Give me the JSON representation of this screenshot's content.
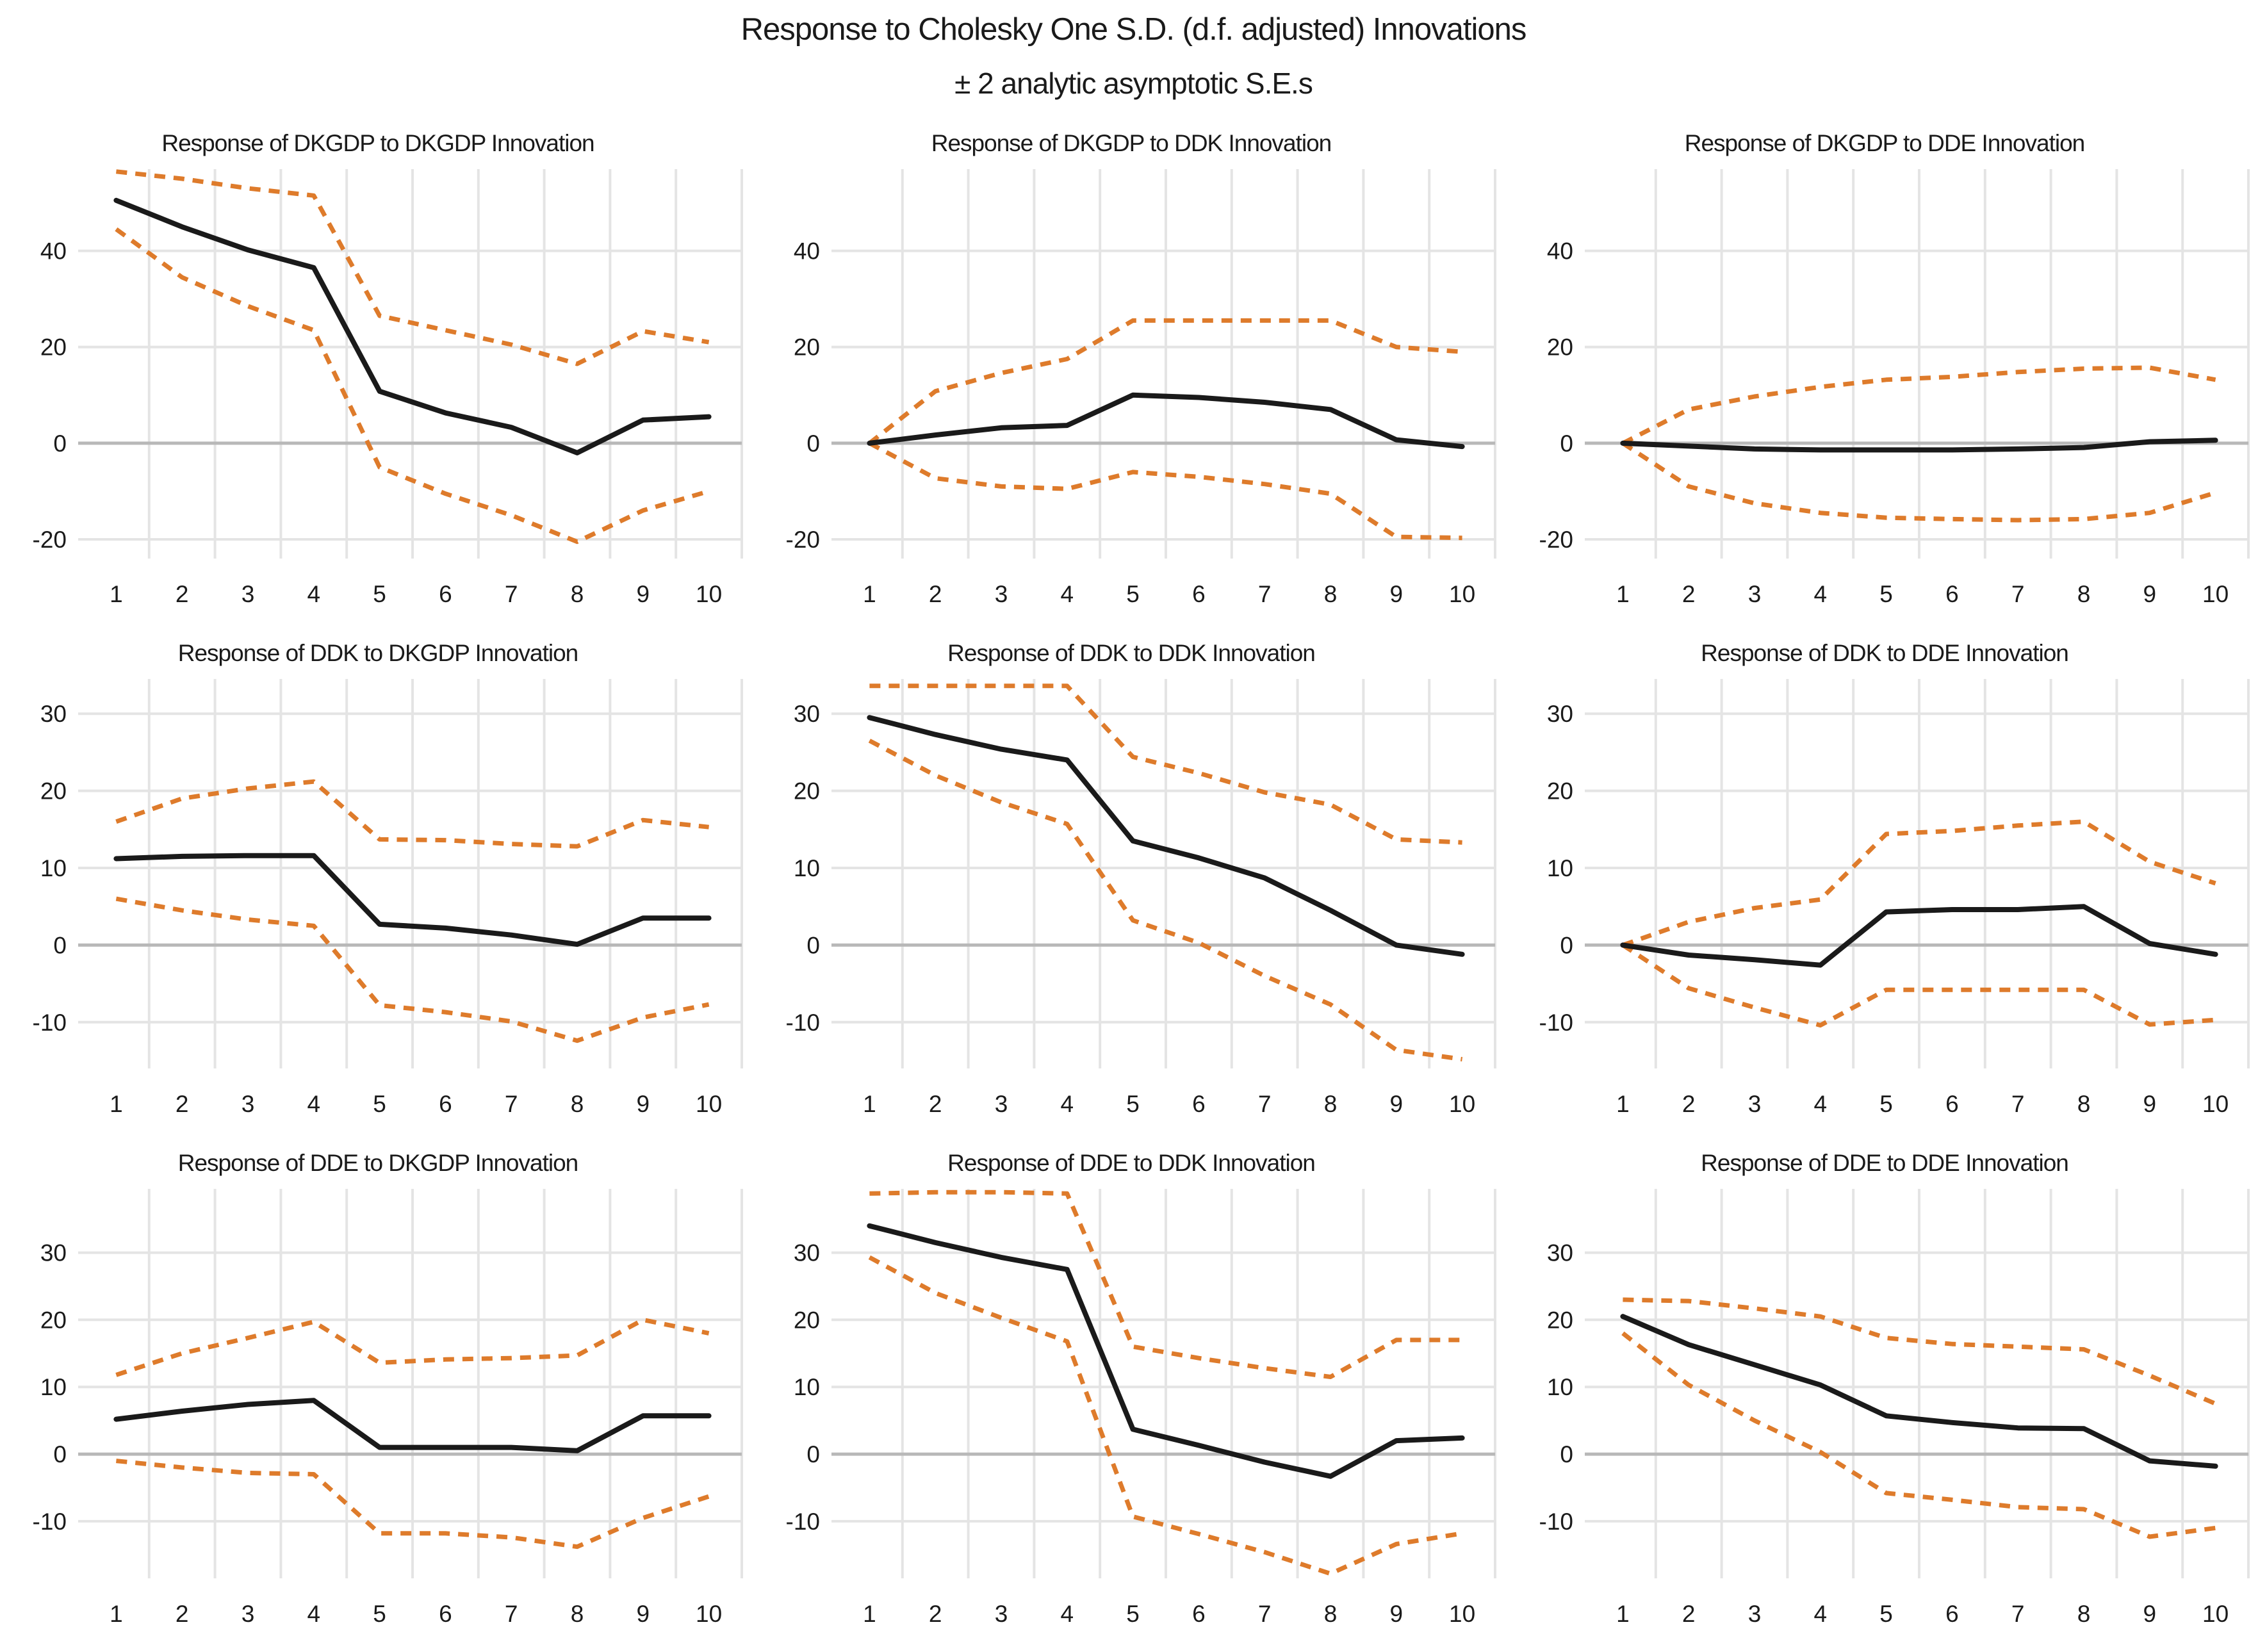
{
  "title": {
    "line1": "Response to Cholesky One S.D. (d.f. adjusted) Innovations",
    "line2": "± 2 analytic asymptotic S.E.s"
  },
  "colors": {
    "response_line": "#1a1a1a",
    "band_line": "#de7b2b",
    "gridline": "#e4e4e4",
    "zero_line": "#b8b8b8"
  },
  "chart_data": {
    "type": "line",
    "x": [
      1,
      2,
      3,
      4,
      5,
      6,
      7,
      8,
      9,
      10
    ],
    "grid": true,
    "legend": "none",
    "series_names": [
      "response",
      "upper_band",
      "lower_band"
    ],
    "charts": [
      {
        "title": "Response of DKGDP to DKGDP Innovation",
        "yticks": [
          40,
          20,
          0,
          -20
        ],
        "ylim": [
          -24,
          57
        ],
        "response": [
          50.5,
          45,
          40.2,
          36.5,
          10.8,
          6.3,
          3.3,
          -2,
          4.8,
          5.5
        ],
        "upper_band": [
          56.5,
          55,
          53,
          51.5,
          26.5,
          23.5,
          20.5,
          16.5,
          23.3,
          21
        ],
        "lower_band": [
          44.5,
          34.5,
          28.5,
          23.5,
          -5,
          -10.5,
          -15,
          -20.5,
          -14,
          -10
        ]
      },
      {
        "title": "Response of DKGDP to DDK Innovation",
        "yticks": [
          40,
          20,
          0,
          -20
        ],
        "ylim": [
          -24,
          57
        ],
        "response": [
          0,
          1.7,
          3.2,
          3.7,
          10,
          9.5,
          8.5,
          7,
          0.7,
          -0.7
        ],
        "upper_band": [
          0,
          10.8,
          14.6,
          17.5,
          25.5,
          25.5,
          25.5,
          25.5,
          20,
          19
        ],
        "lower_band": [
          0,
          -7.3,
          -9,
          -9.5,
          -6,
          -7,
          -8.5,
          -10.5,
          -19.5,
          -19.7
        ]
      },
      {
        "title": "Response of DKGDP to DDE Innovation",
        "yticks": [
          40,
          20,
          0,
          -20
        ],
        "ylim": [
          -24,
          57
        ],
        "response": [
          0,
          -0.6,
          -1.2,
          -1.4,
          -1.4,
          -1.4,
          -1.2,
          -0.9,
          0.3,
          0.6
        ],
        "upper_band": [
          0,
          7,
          9.7,
          11.7,
          13.2,
          13.8,
          14.8,
          15.5,
          15.7,
          13.2
        ],
        "lower_band": [
          0,
          -9,
          -12.5,
          -14.5,
          -15.5,
          -15.8,
          -16,
          -15.8,
          -14.5,
          -10.3
        ]
      },
      {
        "title": "Response of DDK to DKGDP Innovation",
        "yticks": [
          30,
          20,
          10,
          0,
          -10
        ],
        "ylim": [
          -16,
          34.5
        ],
        "response": [
          11.2,
          11.5,
          11.6,
          11.6,
          2.7,
          2.2,
          1.3,
          0.1,
          3.5,
          3.5
        ],
        "upper_band": [
          16,
          19,
          20.3,
          21.2,
          13.7,
          13.6,
          13.1,
          12.8,
          16.2,
          15.3
        ],
        "lower_band": [
          6,
          4.5,
          3.3,
          2.5,
          -7.8,
          -8.7,
          -9.9,
          -12.4,
          -9.4,
          -7.7
        ]
      },
      {
        "title": "Response of DDK to DDK Innovation",
        "yticks": [
          30,
          20,
          10,
          0,
          -10
        ],
        "ylim": [
          -16,
          34.5
        ],
        "response": [
          29.5,
          27.3,
          25.4,
          24,
          13.5,
          11.3,
          8.7,
          4.5,
          0,
          -1.2
        ],
        "upper_band": [
          33.6,
          33.6,
          33.6,
          33.6,
          24.4,
          22.3,
          19.8,
          18.2,
          13.7,
          13.3
        ],
        "lower_band": [
          26.5,
          22,
          18.5,
          15.7,
          3.2,
          0.3,
          -4,
          -7.7,
          -13.6,
          -14.8
        ]
      },
      {
        "title": "Response of DDK to DDE Innovation",
        "yticks": [
          30,
          20,
          10,
          0,
          -10
        ],
        "ylim": [
          -16,
          34.5
        ],
        "response": [
          0,
          -1.3,
          -1.9,
          -2.6,
          4.3,
          4.6,
          4.6,
          5,
          0.2,
          -1.2
        ],
        "upper_band": [
          0,
          3,
          4.8,
          5.9,
          14.4,
          14.8,
          15.5,
          16,
          10.8,
          8
        ],
        "lower_band": [
          0,
          -5.6,
          -8.1,
          -10.4,
          -5.8,
          -5.8,
          -5.8,
          -5.8,
          -10.3,
          -9.7
        ]
      },
      {
        "title": "Response of DDE to DKGDP Innovation",
        "yticks": [
          30,
          20,
          10,
          0,
          -10
        ],
        "ylim": [
          -18.5,
          39.5
        ],
        "response": [
          5.2,
          6.4,
          7.4,
          8,
          1,
          1,
          1,
          0.5,
          5.7,
          5.7
        ],
        "upper_band": [
          11.8,
          15,
          17.3,
          19.7,
          13.6,
          14.1,
          14.3,
          14.7,
          20,
          18
        ],
        "lower_band": [
          -1,
          -2,
          -2.8,
          -3,
          -11.8,
          -11.8,
          -12.4,
          -13.8,
          -9.5,
          -6.3
        ]
      },
      {
        "title": "Response of DDE to DDK Innovation",
        "yticks": [
          30,
          20,
          10,
          0,
          -10
        ],
        "ylim": [
          -18.5,
          39.5
        ],
        "response": [
          34,
          31.5,
          29.3,
          27.5,
          3.7,
          1.3,
          -1.2,
          -3.3,
          2,
          2.4
        ],
        "upper_band": [
          38.8,
          39,
          39,
          38.8,
          16,
          14.3,
          12.8,
          11.5,
          17,
          17
        ],
        "lower_band": [
          29.3,
          24,
          20.3,
          16.8,
          -9.3,
          -11.9,
          -14.6,
          -17.8,
          -13.4,
          -11.8
        ]
      },
      {
        "title": "Response of DDE to DDE Innovation",
        "yticks": [
          30,
          20,
          10,
          0,
          -10
        ],
        "ylim": [
          -18.5,
          39.5
        ],
        "response": [
          20.5,
          16.3,
          13.3,
          10.3,
          5.7,
          4.7,
          3.9,
          3.8,
          -1,
          -1.8
        ],
        "upper_band": [
          23,
          22.8,
          21.7,
          20.5,
          17.3,
          16.4,
          16,
          15.6,
          11.7,
          7.5
        ],
        "lower_band": [
          18,
          10.3,
          5,
          0.3,
          -5.8,
          -6.8,
          -7.9,
          -8.2,
          -12.3,
          -11
        ]
      }
    ]
  }
}
